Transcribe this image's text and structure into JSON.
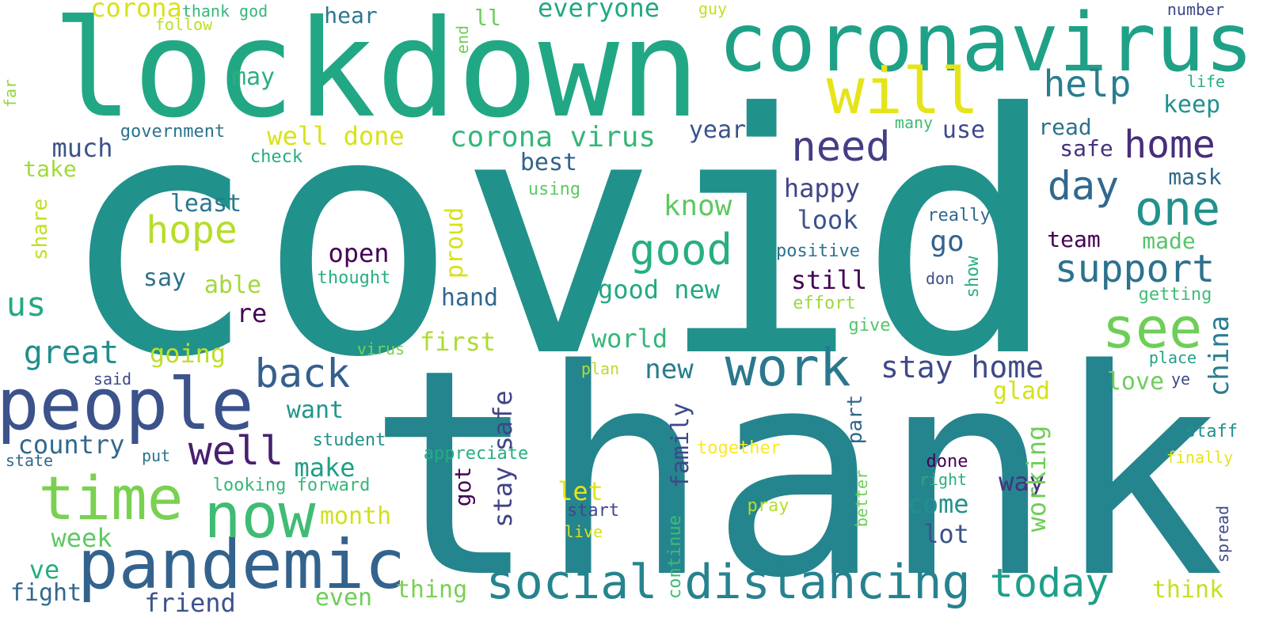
{
  "word_cloud": {
    "words": [
      {
        "text": "covid",
        "color": "#21918c"
      },
      {
        "text": "thank",
        "color": "#25858e"
      },
      {
        "text": "lockdown",
        "color": "#22a785"
      },
      {
        "text": "coronavirus",
        "color": "#1fa187"
      },
      {
        "text": "will",
        "color": "#e5e419"
      },
      {
        "text": "people",
        "color": "#3b528b"
      },
      {
        "text": "pandemic",
        "color": "#33638d"
      },
      {
        "text": "time",
        "color": "#7ad151"
      },
      {
        "text": "now",
        "color": "#3fbc73"
      },
      {
        "text": "social",
        "color": "#25848e"
      },
      {
        "text": "distancing",
        "color": "#26828e"
      },
      {
        "text": "work",
        "color": "#2a788e"
      },
      {
        "text": "need",
        "color": "#433e85"
      },
      {
        "text": "good",
        "color": "#28ae80"
      },
      {
        "text": "one",
        "color": "#21918c"
      },
      {
        "text": "see",
        "color": "#6ece58"
      },
      {
        "text": "home",
        "color": "#472d7b"
      },
      {
        "text": "day",
        "color": "#31688e"
      },
      {
        "text": "support",
        "color": "#2c728e"
      },
      {
        "text": "help",
        "color": "#287d8e"
      },
      {
        "text": "back",
        "color": "#355f8d"
      },
      {
        "text": "well",
        "color": "#481f70"
      },
      {
        "text": "today",
        "color": "#1f9e89"
      },
      {
        "text": "hope",
        "color": "#b5de2b"
      },
      {
        "text": "us",
        "color": "#23a983"
      },
      {
        "text": "great",
        "color": "#228d8d"
      },
      {
        "text": "stay home",
        "color": "#3e4989"
      },
      {
        "text": "corona virus",
        "color": "#35b779"
      },
      {
        "text": "well done",
        "color": "#d8e219"
      },
      {
        "text": "corona",
        "color": "#d8e219"
      },
      {
        "text": "everyone",
        "color": "#22a884"
      },
      {
        "text": "much",
        "color": "#3b528b"
      },
      {
        "text": "take",
        "color": "#a0da39"
      },
      {
        "text": "least",
        "color": "#2a788e"
      },
      {
        "text": "know",
        "color": "#5ec962"
      },
      {
        "text": "happy",
        "color": "#414487"
      },
      {
        "text": "look",
        "color": "#3b528b"
      },
      {
        "text": "still",
        "color": "#440154"
      },
      {
        "text": "go",
        "color": "#33638d"
      },
      {
        "text": "open",
        "color": "#440154"
      },
      {
        "text": "say",
        "color": "#2c728e"
      },
      {
        "text": "able",
        "color": "#a0da39"
      },
      {
        "text": "re",
        "color": "#440154"
      },
      {
        "text": "going",
        "color": "#bddf26"
      },
      {
        "text": "first",
        "color": "#addc30"
      },
      {
        "text": "world",
        "color": "#35b779"
      },
      {
        "text": "new",
        "color": "#287d8e"
      },
      {
        "text": "good new",
        "color": "#22a884"
      },
      {
        "text": "hand",
        "color": "#31688e"
      },
      {
        "text": "best",
        "color": "#33638d"
      },
      {
        "text": "year",
        "color": "#3b528b"
      },
      {
        "text": "use",
        "color": "#3e4989"
      },
      {
        "text": "read",
        "color": "#2c728e"
      },
      {
        "text": "safe",
        "color": "#46327e"
      },
      {
        "text": "keep",
        "color": "#21918c"
      },
      {
        "text": "mask",
        "color": "#30698e"
      },
      {
        "text": "made",
        "color": "#54c568"
      },
      {
        "text": "team",
        "color": "#440154"
      },
      {
        "text": "life",
        "color": "#26ad81"
      },
      {
        "text": "number",
        "color": "#3e4989"
      },
      {
        "text": "may",
        "color": "#2ab07f"
      },
      {
        "text": "hear",
        "color": "#2a788e"
      },
      {
        "text": "ll",
        "color": "#6ece58"
      },
      {
        "text": "government",
        "color": "#2c728e"
      },
      {
        "text": "check",
        "color": "#25ac82"
      },
      {
        "text": "using",
        "color": "#5ec962"
      },
      {
        "text": "thank god",
        "color": "#35b779"
      },
      {
        "text": "follow",
        "color": "#bddf26"
      },
      {
        "text": "guy",
        "color": "#c2df23"
      },
      {
        "text": "many",
        "color": "#3fbc73"
      },
      {
        "text": "really",
        "color": "#31688e"
      },
      {
        "text": "positive",
        "color": "#2c728e"
      },
      {
        "text": "thought",
        "color": "#29af7f"
      },
      {
        "text": "don",
        "color": "#3b528b"
      },
      {
        "text": "effort",
        "color": "#9bd93c"
      },
      {
        "text": "getting",
        "color": "#3fbc73"
      },
      {
        "text": "give",
        "color": "#54c568"
      },
      {
        "text": "virus",
        "color": "#7ad151"
      },
      {
        "text": "plan",
        "color": "#b5de2b"
      },
      {
        "text": "said",
        "color": "#3e4989"
      },
      {
        "text": "place",
        "color": "#1fa187"
      },
      {
        "text": "ye",
        "color": "#3e4989"
      },
      {
        "text": "love",
        "color": "#6ece58"
      },
      {
        "text": "glad",
        "color": "#d2e21b"
      },
      {
        "text": "want",
        "color": "#1f968b"
      },
      {
        "text": "make",
        "color": "#1f9f88"
      },
      {
        "text": "country",
        "color": "#31688e"
      },
      {
        "text": "student",
        "color": "#21918c"
      },
      {
        "text": "put",
        "color": "#2c728e"
      },
      {
        "text": "state",
        "color": "#31688e"
      },
      {
        "text": "appreciate",
        "color": "#26ad81"
      },
      {
        "text": "together",
        "color": "#fde725"
      },
      {
        "text": "looking forward",
        "color": "#35b779"
      },
      {
        "text": "month",
        "color": "#d0e11c"
      },
      {
        "text": "let",
        "color": "#e5e419"
      },
      {
        "text": "start",
        "color": "#3e4989"
      },
      {
        "text": "live",
        "color": "#d5e21a"
      },
      {
        "text": "pray",
        "color": "#b5de2b"
      },
      {
        "text": "come",
        "color": "#21918c"
      },
      {
        "text": "lot",
        "color": "#3b528b"
      },
      {
        "text": "way",
        "color": "#46327e"
      },
      {
        "text": "done",
        "color": "#440154"
      },
      {
        "text": "right",
        "color": "#29af7f"
      },
      {
        "text": "staff",
        "color": "#21918c"
      },
      {
        "text": "finally",
        "color": "#e5e419"
      },
      {
        "text": "think",
        "color": "#c8e020"
      },
      {
        "text": "week",
        "color": "#5ec962"
      },
      {
        "text": "ve",
        "color": "#26ad81"
      },
      {
        "text": "fight",
        "color": "#31688e"
      },
      {
        "text": "friend",
        "color": "#3b528b"
      },
      {
        "text": "even",
        "color": "#6ece58"
      },
      {
        "text": "thing",
        "color": "#7ad151"
      },
      {
        "text": "share",
        "color": "#c2df23"
      },
      {
        "text": "proud",
        "color": "#d8e219"
      },
      {
        "text": "stay safe",
        "color": "#414487"
      },
      {
        "text": "got",
        "color": "#440154"
      },
      {
        "text": "family",
        "color": "#3e4989"
      },
      {
        "text": "part",
        "color": "#31688e"
      },
      {
        "text": "working",
        "color": "#6ece58"
      },
      {
        "text": "china",
        "color": "#287d8e"
      },
      {
        "text": "show",
        "color": "#2ab07f"
      },
      {
        "text": "end",
        "color": "#6ece58"
      },
      {
        "text": "far",
        "color": "#90d743"
      },
      {
        "text": "continue",
        "color": "#3fbc73"
      },
      {
        "text": "better",
        "color": "#6ece58"
      },
      {
        "text": "spread",
        "color": "#3e4989"
      }
    ]
  }
}
